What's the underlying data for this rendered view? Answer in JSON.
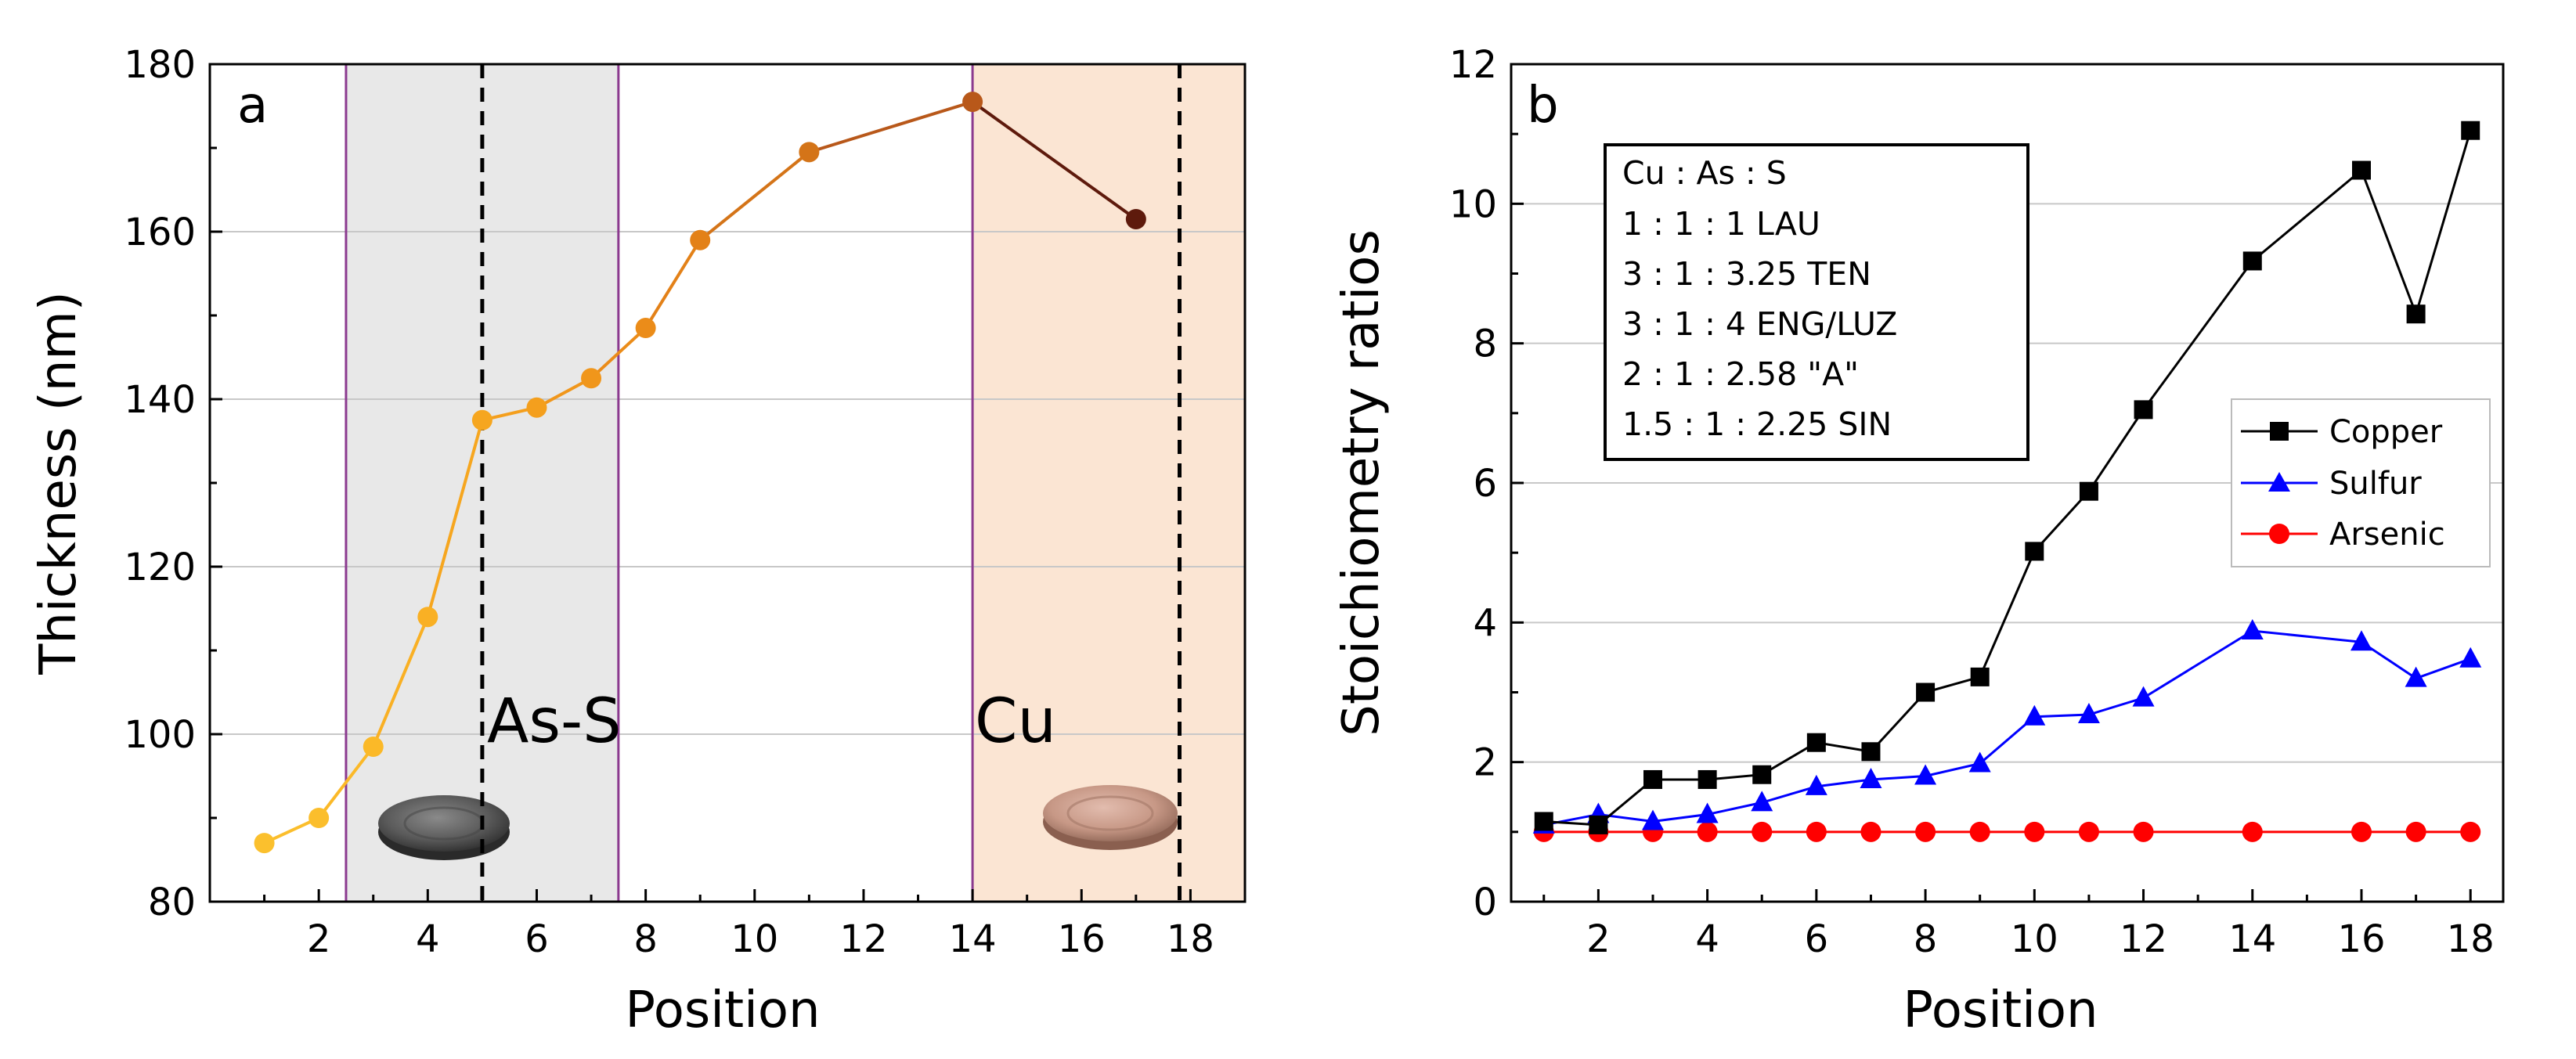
{
  "chart_data": [
    {
      "panel_label": "a",
      "type": "line",
      "xlabel": "Position",
      "ylabel": "Thickness (nm)",
      "xlim": [
        0,
        19
      ],
      "ylim": [
        80,
        180
      ],
      "xticks": [
        2,
        4,
        6,
        8,
        10,
        12,
        14,
        16,
        18
      ],
      "yticks": [
        80,
        100,
        120,
        140,
        160,
        180
      ],
      "x_tick_labels": [
        "2",
        "4",
        "6",
        "8",
        "10",
        "12",
        "14",
        "16",
        "18"
      ],
      "y_tick_labels": [
        "80",
        "100",
        "120",
        "140",
        "160",
        "180"
      ],
      "grid": true,
      "regions": [
        {
          "label": "As-S",
          "from": 2.5,
          "to": 7.5,
          "color": "#e8e8e8",
          "target_position": 5
        },
        {
          "label": "Cu",
          "from": 14,
          "to": 19,
          "color": "#fbe5d3",
          "target_position": 17.8
        }
      ],
      "boundary_color": "#8b3a8f",
      "series": [
        {
          "name": "Thickness",
          "x": [
            1,
            2,
            3,
            4,
            5,
            6,
            7,
            8,
            9,
            11,
            14,
            17
          ],
          "y": [
            87,
            90,
            98.5,
            114,
            137.5,
            139,
            142.5,
            148.5,
            159,
            169.5,
            175.5,
            161.5
          ],
          "colors": [
            "#fbc02d",
            "#fbbe2c",
            "#fbb928",
            "#f9b024",
            "#f6a61f",
            "#f49f1d",
            "#f0961b",
            "#eb8c19",
            "#e38118",
            "#d47418",
            "#b8581a",
            "#5e1a0c"
          ]
        }
      ]
    },
    {
      "panel_label": "b",
      "type": "line",
      "xlabel": "Position",
      "ylabel": "Stoichiometry ratios",
      "xlim": [
        0.4,
        18.6
      ],
      "ylim": [
        0,
        12
      ],
      "xticks": [
        2,
        4,
        6,
        8,
        10,
        12,
        14,
        16,
        18
      ],
      "yticks": [
        0,
        2,
        4,
        6,
        8,
        10,
        12
      ],
      "x_tick_labels": [
        "2",
        "4",
        "6",
        "8",
        "10",
        "12",
        "14",
        "16",
        "18"
      ],
      "y_tick_labels": [
        "0",
        "2",
        "4",
        "6",
        "8",
        "10",
        "12"
      ],
      "grid": true,
      "legend_position": "middle-right",
      "series": [
        {
          "name": "Copper",
          "color": "#000000",
          "marker": "square",
          "x": [
            1,
            2,
            3,
            4,
            5,
            6,
            7,
            8,
            9,
            10,
            11,
            12,
            14,
            16,
            17,
            18
          ],
          "y": [
            1.15,
            1.1,
            1.75,
            1.75,
            1.82,
            2.28,
            2.15,
            3.0,
            3.22,
            5.02,
            5.88,
            7.05,
            9.18,
            10.48,
            8.42,
            11.05
          ]
        },
        {
          "name": "Sulfur",
          "color": "#0000ff",
          "marker": "triangle",
          "x": [
            1,
            2,
            3,
            4,
            5,
            6,
            7,
            8,
            9,
            10,
            11,
            12,
            14,
            16,
            17,
            18
          ],
          "y": [
            1.1,
            1.25,
            1.15,
            1.25,
            1.42,
            1.65,
            1.75,
            1.8,
            1.98,
            2.65,
            2.68,
            2.92,
            3.88,
            3.72,
            3.2,
            3.48
          ]
        },
        {
          "name": "Arsenic",
          "color": "#ff0000",
          "marker": "circle",
          "x": [
            1,
            2,
            3,
            4,
            5,
            6,
            7,
            8,
            9,
            10,
            11,
            12,
            14,
            16,
            17,
            18
          ],
          "y": [
            1,
            1,
            1,
            1,
            1,
            1,
            1,
            1,
            1,
            1,
            1,
            1,
            1,
            1,
            1,
            1
          ]
        }
      ],
      "annotation_lines": [
        "Cu : As : S",
        "1 : 1 : 1 LAU",
        "3 : 1 : 3.25 TEN",
        "3 : 1 : 4 ENG/LUZ",
        "2 : 1 : 2.58 \"A\"",
        "1.5 : 1 : 2.25 SIN"
      ]
    }
  ]
}
